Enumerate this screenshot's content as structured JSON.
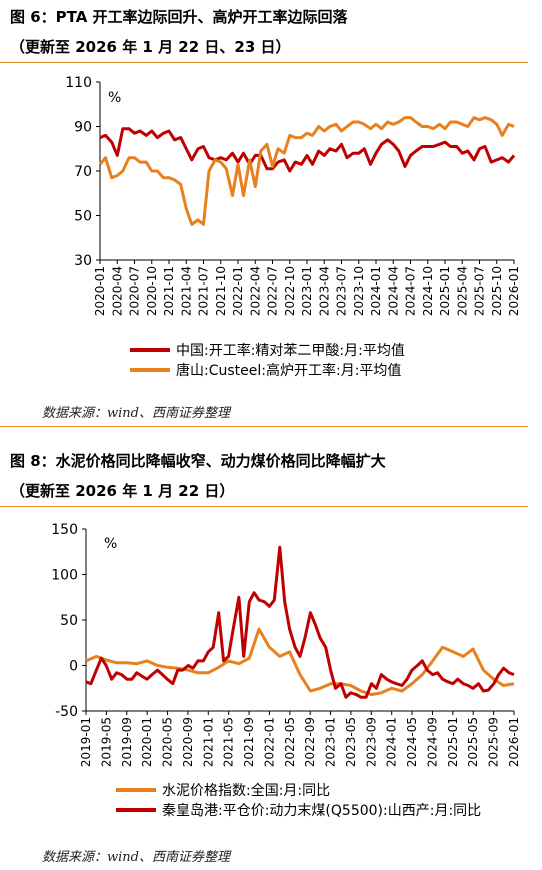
{
  "source_text": "数据来源：wind、西南证券整理",
  "chart_data": [
    {
      "type": "line",
      "title": "图 6：PTA 开工率边际回升、高炉开工率边际回落",
      "subtitle": "（更新至 2026 年 1 月 22 日、23 日）",
      "unit": "%",
      "ylim": [
        30,
        110
      ],
      "yticks": [
        30,
        50,
        70,
        90,
        110
      ],
      "xlim": [
        2020.0,
        2026.0
      ],
      "xticks": [
        "2020-01",
        "2020-04",
        "2020-07",
        "2020-10",
        "2021-01",
        "2021-04",
        "2021-07",
        "2021-10",
        "2022-01",
        "2022-04",
        "2022-07",
        "2022-10",
        "2023-01",
        "2023-04",
        "2023-07",
        "2023-10",
        "2024-01",
        "2024-04",
        "2024-07",
        "2024-10",
        "2025-01",
        "2025-04",
        "2025-07",
        "2025-10",
        "2026-01"
      ],
      "grid": false,
      "legend": "bottom",
      "series": [
        {
          "name": "中国:开工率:精对苯二甲酸:月:平均值",
          "color": "#c00000",
          "x": [
            2020.0,
            2020.08,
            2020.17,
            2020.25,
            2020.33,
            2020.42,
            2020.5,
            2020.58,
            2020.67,
            2020.75,
            2020.83,
            2020.92,
            2021.0,
            2021.08,
            2021.17,
            2021.25,
            2021.33,
            2021.42,
            2021.5,
            2021.58,
            2021.67,
            2021.75,
            2021.83,
            2021.92,
            2022.0,
            2022.08,
            2022.17,
            2022.25,
            2022.33,
            2022.42,
            2022.5,
            2022.58,
            2022.67,
            2022.75,
            2022.83,
            2022.92,
            2023.0,
            2023.08,
            2023.17,
            2023.25,
            2023.33,
            2023.42,
            2023.5,
            2023.58,
            2023.67,
            2023.75,
            2023.83,
            2023.92,
            2024.0,
            2024.08,
            2024.17,
            2024.25,
            2024.33,
            2024.42,
            2024.5,
            2024.58,
            2024.67,
            2024.75,
            2024.83,
            2024.92,
            2025.0,
            2025.08,
            2025.17,
            2025.25,
            2025.33,
            2025.42,
            2025.5,
            2025.58,
            2025.67,
            2025.75,
            2025.83,
            2025.92,
            2026.0
          ],
          "values": [
            85,
            86,
            83,
            77,
            89,
            89,
            87,
            88,
            86,
            88,
            85,
            87,
            88,
            84,
            85,
            80,
            75,
            80,
            81,
            76,
            75,
            76,
            75,
            78,
            74,
            78,
            73,
            77,
            77,
            71,
            71,
            74,
            75,
            70,
            74,
            73,
            77,
            73,
            79,
            77,
            80,
            79,
            82,
            76,
            78,
            78,
            80,
            73,
            78,
            82,
            84,
            82,
            79,
            72,
            77,
            79,
            81,
            81,
            81,
            82,
            83,
            81,
            81,
            78,
            79,
            75,
            80,
            81,
            74,
            75,
            76,
            74,
            77
          ]
        },
        {
          "name": "唐山:Custeel:高炉开工率:月:平均值",
          "color": "#e8801e",
          "x": [
            2020.0,
            2020.08,
            2020.17,
            2020.25,
            2020.33,
            2020.42,
            2020.5,
            2020.58,
            2020.67,
            2020.75,
            2020.83,
            2020.92,
            2021.0,
            2021.08,
            2021.17,
            2021.25,
            2021.33,
            2021.42,
            2021.5,
            2021.58,
            2021.67,
            2021.75,
            2021.83,
            2021.92,
            2022.0,
            2022.08,
            2022.17,
            2022.25,
            2022.33,
            2022.42,
            2022.5,
            2022.58,
            2022.67,
            2022.75,
            2022.83,
            2022.92,
            2023.0,
            2023.08,
            2023.17,
            2023.25,
            2023.33,
            2023.42,
            2023.5,
            2023.58,
            2023.67,
            2023.75,
            2023.83,
            2023.92,
            2024.0,
            2024.08,
            2024.17,
            2024.25,
            2024.33,
            2024.42,
            2024.5,
            2024.58,
            2024.67,
            2024.75,
            2024.83,
            2024.92,
            2025.0,
            2025.08,
            2025.17,
            2025.25,
            2025.33,
            2025.42,
            2025.5,
            2025.58,
            2025.67,
            2025.75,
            2025.83,
            2025.92,
            2026.0
          ],
          "values": [
            73,
            76,
            67,
            68,
            70,
            76,
            76,
            74,
            74,
            70,
            70,
            67,
            67,
            66,
            64,
            53,
            46,
            48,
            46,
            70,
            75,
            74,
            71,
            59,
            73,
            59,
            75,
            63,
            79,
            82,
            72,
            80,
            78,
            86,
            85,
            85,
            87,
            86,
            90,
            88,
            90,
            91,
            88,
            90,
            92,
            92,
            91,
            89,
            91,
            89,
            92,
            91,
            92,
            94,
            94,
            92,
            90,
            90,
            89,
            91,
            89,
            92,
            92,
            91,
            90,
            94,
            93,
            94,
            93,
            91,
            86,
            91,
            90
          ]
        }
      ]
    },
    {
      "type": "line",
      "title": "图 8：水泥价格同比降幅收窄、动力煤价格同比降幅扩大",
      "subtitle": "（更新至 2026 年 1 月 22 日）",
      "unit": "%",
      "ylim": [
        -50,
        150
      ],
      "yticks": [
        -50,
        0,
        50,
        100,
        150
      ],
      "xlim": [
        2019.0,
        2026.0
      ],
      "xticks": [
        "2019-01",
        "2019-05",
        "2019-09",
        "2020-01",
        "2020-05",
        "2020-09",
        "2021-01",
        "2021-05",
        "2021-09",
        "2022-01",
        "2022-05",
        "2022-09",
        "2023-01",
        "2023-05",
        "2023-09",
        "2024-01",
        "2024-05",
        "2024-09",
        "2025-01",
        "2025-05",
        "2025-09",
        "2026-01"
      ],
      "grid": false,
      "legend": "bottom",
      "series": [
        {
          "name": "水泥价格指数:全国:月:同比",
          "color": "#e8801e",
          "x": [
            2019.0,
            2019.17,
            2019.33,
            2019.5,
            2019.67,
            2019.83,
            2020.0,
            2020.17,
            2020.33,
            2020.5,
            2020.67,
            2020.83,
            2021.0,
            2021.17,
            2021.33,
            2021.5,
            2021.67,
            2021.83,
            2022.0,
            2022.17,
            2022.33,
            2022.5,
            2022.67,
            2022.83,
            2023.0,
            2023.17,
            2023.33,
            2023.5,
            2023.67,
            2023.83,
            2024.0,
            2024.17,
            2024.33,
            2024.5,
            2024.67,
            2024.83,
            2025.0,
            2025.17,
            2025.33,
            2025.5,
            2025.67,
            2025.83,
            2026.0
          ],
          "values": [
            5,
            10,
            6,
            3,
            3,
            2,
            5,
            0,
            -2,
            -3,
            -5,
            -8,
            -8,
            -2,
            5,
            2,
            8,
            40,
            20,
            10,
            15,
            -10,
            -28,
            -25,
            -20,
            -20,
            -22,
            -28,
            -32,
            -30,
            -25,
            -28,
            -20,
            -10,
            5,
            20,
            15,
            10,
            18,
            -5,
            -15,
            -22,
            -20
          ]
        },
        {
          "name": "秦皇岛港:平仓价:动力末煤(Q5500):山西产:月:同比",
          "color": "#c00000",
          "x": [
            2019.0,
            2019.08,
            2019.17,
            2019.25,
            2019.33,
            2019.42,
            2019.5,
            2019.58,
            2019.67,
            2019.75,
            2019.83,
            2019.92,
            2020.0,
            2020.08,
            2020.17,
            2020.25,
            2020.33,
            2020.42,
            2020.5,
            2020.58,
            2020.67,
            2020.75,
            2020.83,
            2020.92,
            2021.0,
            2021.08,
            2021.17,
            2021.25,
            2021.33,
            2021.42,
            2021.5,
            2021.58,
            2021.67,
            2021.75,
            2021.83,
            2021.92,
            2022.0,
            2022.08,
            2022.17,
            2022.25,
            2022.33,
            2022.42,
            2022.5,
            2022.58,
            2022.67,
            2022.75,
            2022.83,
            2022.92,
            2023.0,
            2023.08,
            2023.17,
            2023.25,
            2023.33,
            2023.42,
            2023.5,
            2023.58,
            2023.67,
            2023.75,
            2023.83,
            2023.92,
            2024.0,
            2024.08,
            2024.17,
            2024.25,
            2024.33,
            2024.42,
            2024.5,
            2024.58,
            2024.67,
            2024.75,
            2024.83,
            2024.92,
            2025.0,
            2025.08,
            2025.17,
            2025.25,
            2025.33,
            2025.42,
            2025.5,
            2025.58,
            2025.67,
            2025.75,
            2025.83,
            2025.92,
            2026.0
          ],
          "values": [
            -18,
            -20,
            -5,
            8,
            0,
            -15,
            -8,
            -10,
            -15,
            -15,
            -8,
            -12,
            -15,
            -10,
            -5,
            -10,
            -15,
            -20,
            -5,
            -5,
            0,
            -3,
            5,
            5,
            15,
            20,
            58,
            5,
            10,
            45,
            75,
            10,
            70,
            80,
            72,
            70,
            65,
            72,
            130,
            70,
            40,
            20,
            10,
            30,
            58,
            45,
            30,
            20,
            -5,
            -25,
            -20,
            -35,
            -30,
            -32,
            -35,
            -35,
            -20,
            -25,
            -10,
            -15,
            -18,
            -20,
            -22,
            -15,
            -5,
            0,
            5,
            -5,
            -10,
            -8,
            -15,
            -18,
            -20,
            -15,
            -20,
            -22,
            -25,
            -20,
            -28,
            -27,
            -20,
            -10,
            -3,
            -8,
            -10
          ]
        }
      ]
    }
  ]
}
